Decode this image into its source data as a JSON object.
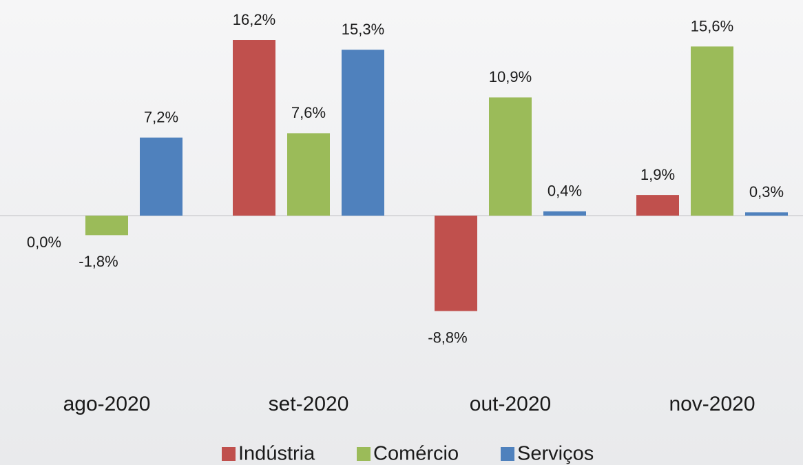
{
  "chart_data": {
    "type": "bar",
    "categories": [
      "ago-2020",
      "set-2020",
      "out-2020",
      "nov-2020"
    ],
    "series": [
      {
        "name": "Indústria",
        "color": "#c0504d",
        "values": [
          0.0,
          16.2,
          -8.8,
          1.9
        ],
        "value_labels": [
          "0,0%",
          "16,2%",
          "-8,8%",
          "1,9%"
        ]
      },
      {
        "name": "Comércio",
        "color": "#9bbb59",
        "values": [
          -1.8,
          7.6,
          10.9,
          15.6
        ],
        "value_labels": [
          "-1,8%",
          "7,6%",
          "10,9%",
          "15,6%"
        ]
      },
      {
        "name": "Serviços",
        "color": "#4f81bd",
        "values": [
          7.2,
          15.3,
          0.4,
          0.3
        ],
        "value_labels": [
          "7,2%",
          "15,3%",
          "0,4%",
          "0,3%"
        ]
      }
    ],
    "legend": "bottom"
  }
}
